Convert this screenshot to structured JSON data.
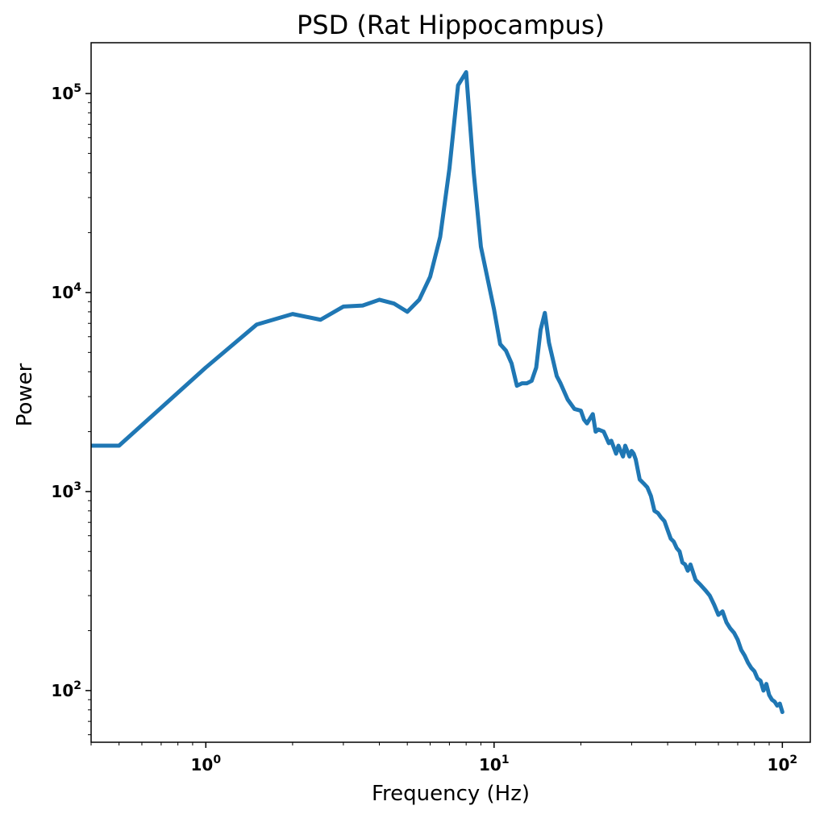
{
  "chart_data": {
    "type": "line",
    "title": "PSD (Rat Hippocampus)",
    "xlabel": "Frequency (Hz)",
    "ylabel": "Power",
    "xscale": "log",
    "yscale": "log",
    "xlim": [
      0.4,
      125
    ],
    "ylim": [
      55,
      180000
    ],
    "x_ticks": [
      {
        "value": 1,
        "base": "10",
        "exp": "0"
      },
      {
        "value": 10,
        "base": "10",
        "exp": "1"
      },
      {
        "value": 100,
        "base": "10",
        "exp": "2"
      }
    ],
    "y_ticks": [
      {
        "value": 100,
        "base": "10",
        "exp": "2"
      },
      {
        "value": 1000,
        "base": "10",
        "exp": "3"
      },
      {
        "value": 10000,
        "base": "10",
        "exp": "4"
      },
      {
        "value": 100000,
        "base": "10",
        "exp": "5"
      }
    ],
    "grid": false,
    "series": [
      {
        "color": "#1f77b4",
        "x": [
          0.4,
          0.5,
          1.0,
          1.5,
          2.0,
          2.5,
          3.0,
          3.5,
          4.0,
          4.5,
          5.0,
          5.5,
          6.0,
          6.5,
          7.0,
          7.5,
          8.0,
          8.5,
          9.0,
          10.0,
          10.5,
          11.0,
          11.5,
          12.0,
          12.5,
          13.0,
          13.5,
          14.0,
          14.5,
          15.0,
          15.5,
          16.5,
          17.0,
          18.0,
          19.0,
          20.0,
          20.5,
          21.0,
          22.0,
          22.5,
          23.0,
          24.0,
          25.0,
          25.5,
          26.5,
          27.0,
          28.0,
          28.5,
          29.5,
          30.0,
          30.5,
          31.0,
          32.0,
          33.0,
          34.0,
          35.0,
          36.0,
          37.0,
          38.0,
          39.0,
          40.0,
          41.0,
          42.0,
          43.0,
          44.0,
          45.0,
          46.0,
          47.0,
          48.0,
          50.0,
          52.0,
          54.0,
          56.0,
          58.0,
          60.0,
          62.0,
          64.0,
          66.0,
          68.0,
          70.0,
          72.0,
          74.0,
          76.0,
          78.0,
          80.0,
          82.0,
          84.0,
          86.0,
          88.0,
          90.0,
          92.0,
          94.0,
          96.0,
          98.0,
          100.0
        ],
        "values": [
          1700,
          1700,
          4200,
          6900,
          7800,
          7300,
          8500,
          8600,
          9200,
          8800,
          8000,
          9200,
          12000,
          19000,
          42000,
          110000,
          128000,
          40000,
          17000,
          8200,
          5500,
          5100,
          4400,
          3400,
          3500,
          3500,
          3600,
          4200,
          6500,
          7900,
          5600,
          3800,
          3500,
          2900,
          2600,
          2550,
          2300,
          2200,
          2450,
          2000,
          2050,
          2000,
          1750,
          1800,
          1550,
          1700,
          1500,
          1700,
          1500,
          1600,
          1550,
          1450,
          1150,
          1100,
          1050,
          950,
          800,
          780,
          740,
          710,
          640,
          580,
          560,
          520,
          500,
          440,
          430,
          400,
          430,
          360,
          340,
          320,
          300,
          270,
          240,
          250,
          220,
          205,
          195,
          180,
          160,
          150,
          138,
          130,
          125,
          115,
          112,
          100,
          108,
          95,
          90,
          88,
          84,
          86,
          78
        ]
      }
    ]
  }
}
